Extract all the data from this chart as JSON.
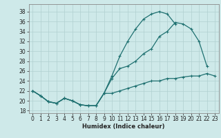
{
  "title": "",
  "xlabel": "Humidex (Indice chaleur)",
  "ylabel": "",
  "bg_color": "#cee9e9",
  "grid_color": "#b0d0d0",
  "line_color": "#1e7070",
  "xlim": [
    -0.5,
    23.5
  ],
  "ylim": [
    17.5,
    39.5
  ],
  "xticks": [
    0,
    1,
    2,
    3,
    4,
    5,
    6,
    7,
    8,
    9,
    10,
    11,
    12,
    13,
    14,
    15,
    16,
    17,
    18,
    19,
    20,
    21,
    22,
    23
  ],
  "yticks": [
    18,
    20,
    22,
    24,
    26,
    28,
    30,
    32,
    34,
    36,
    38
  ],
  "series1": [
    22,
    21,
    19.8,
    19.5,
    20.5,
    20,
    19.2,
    19,
    19,
    21.5,
    25,
    29,
    32,
    34.5,
    36.5,
    37.5,
    38,
    37.5,
    35.5,
    null,
    null,
    null,
    null,
    null
  ],
  "series2": [
    22,
    21,
    19.8,
    19.5,
    20.5,
    20,
    19.2,
    19,
    19,
    21.5,
    24.5,
    26.5,
    27,
    28,
    29.5,
    30.5,
    33,
    34,
    35.8,
    35.5,
    34.5,
    32,
    27,
    null
  ],
  "series3": [
    22,
    21,
    19.8,
    19.5,
    20.5,
    20,
    19.2,
    19,
    19,
    21.5,
    21.5,
    22,
    22.5,
    23,
    23.5,
    24,
    24,
    24.5,
    24.5,
    24.8,
    25,
    25,
    25.5,
    25
  ]
}
